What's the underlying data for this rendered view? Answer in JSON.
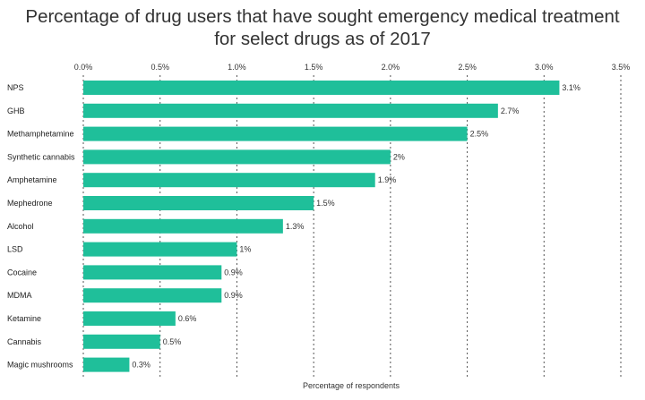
{
  "chart_data": {
    "type": "bar",
    "orientation": "horizontal",
    "title_line1": "Percentage of drug users that have sought emergency medical treatment",
    "title_line2": "for select drugs as of 2017",
    "xlabel": "Percentage of respondents",
    "ylabel": "",
    "xlim": [
      0,
      3.5
    ],
    "grid": true,
    "bar_color": "#1fbf9a",
    "ticks": [
      "0.0%",
      "0.5%",
      "1.0%",
      "1.5%",
      "2.0%",
      "2.5%",
      "3.0%",
      "3.5%"
    ],
    "categories": [
      "NPS",
      "GHB",
      "Methamphetamine",
      "Synthetic cannabis",
      "Amphetamine",
      "Mephedrone",
      "Alcohol",
      "LSD",
      "Cocaine",
      "MDMA",
      "Ketamine",
      "Cannabis",
      "Magic mushrooms"
    ],
    "values": [
      3.1,
      2.7,
      2.5,
      2.0,
      1.9,
      1.5,
      1.3,
      1.0,
      0.9,
      0.9,
      0.6,
      0.5,
      0.3
    ],
    "value_labels": [
      "3.1%",
      "2.7%",
      "2.5%",
      "2%",
      "1.9%",
      "1.5%",
      "1.3%",
      "1%",
      "0.9%",
      "0.9%",
      "0.6%",
      "0.5%",
      "0.3%"
    ]
  }
}
